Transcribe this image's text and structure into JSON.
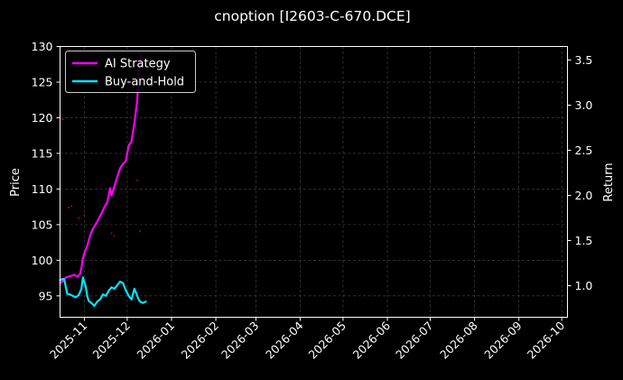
{
  "chart_data": {
    "type": "line",
    "title": "cnoption [I2603-C-670.DCE]",
    "xlabel": "",
    "ylabel": "Price",
    "y2label": "Return",
    "grid": true,
    "legend_position": "top-left",
    "background": "#000000",
    "ylim": [
      92,
      130
    ],
    "yticks": [
      95,
      100,
      105,
      110,
      115,
      120,
      125,
      130
    ],
    "y2lim": [
      0.65,
      3.65
    ],
    "y2ticks": [
      1.0,
      1.5,
      2.0,
      2.5,
      3.0,
      3.5
    ],
    "y2tick_labels": [
      "1.0",
      "1.5",
      "2.0",
      "2.5",
      "3.0",
      "3.5"
    ],
    "xlim": [
      "2025-10-15",
      "2026-10-05"
    ],
    "xticks": [
      "2025-11-01",
      "2025-12-01",
      "2026-01-01",
      "2026-02-01",
      "2026-03-01",
      "2026-04-01",
      "2026-05-01",
      "2026-06-01",
      "2026-07-01",
      "2026-08-01",
      "2026-09-01",
      "2026-10-01"
    ],
    "xtick_labels": [
      "2025-11",
      "2025-12",
      "2026-01",
      "2026-02",
      "2026-03",
      "2026-04",
      "2026-05",
      "2026-06",
      "2026-07",
      "2026-08",
      "2026-09",
      "2026-10"
    ],
    "series": [
      {
        "name": "AI Strategy",
        "axis": "right",
        "color": "#ff00ff",
        "x": [
          "2025-10-15",
          "2025-10-17",
          "2025-10-19",
          "2025-10-21",
          "2025-10-23",
          "2025-10-25",
          "2025-10-27",
          "2025-10-29",
          "2025-10-30",
          "2025-10-31",
          "2025-11-01",
          "2025-11-02",
          "2025-11-03",
          "2025-11-05",
          "2025-11-07",
          "2025-11-09",
          "2025-11-11",
          "2025-11-13",
          "2025-11-15",
          "2025-11-17",
          "2025-11-19",
          "2025-11-20",
          "2025-11-22",
          "2025-11-24",
          "2025-11-26",
          "2025-11-28",
          "2025-11-30",
          "2025-12-02",
          "2025-12-04",
          "2025-12-06",
          "2025-12-08",
          "2025-12-09",
          "2025-12-10",
          "2025-12-11"
        ],
        "values": [
          1.03,
          1.05,
          1.09,
          1.1,
          1.11,
          1.12,
          1.1,
          1.13,
          1.2,
          1.3,
          1.36,
          1.4,
          1.44,
          1.55,
          1.63,
          1.68,
          1.74,
          1.8,
          1.87,
          1.92,
          2.08,
          2.0,
          2.1,
          2.2,
          2.3,
          2.35,
          2.38,
          2.55,
          2.6,
          2.8,
          3.05,
          3.35,
          3.48,
          3.55
        ]
      },
      {
        "name": "Buy-and-Hold",
        "axis": "left",
        "color": "#00e5ff",
        "x": [
          "2025-10-15",
          "2025-10-17",
          "2025-10-18",
          "2025-10-20",
          "2025-10-22",
          "2025-10-24",
          "2025-10-26",
          "2025-10-28",
          "2025-10-30",
          "2025-10-31",
          "2025-11-02",
          "2025-11-03",
          "2025-11-04",
          "2025-11-06",
          "2025-11-08",
          "2025-11-10",
          "2025-11-12",
          "2025-11-14",
          "2025-11-16",
          "2025-11-18",
          "2025-11-20",
          "2025-11-22",
          "2025-11-24",
          "2025-11-26",
          "2025-11-28",
          "2025-11-30",
          "2025-12-02",
          "2025-12-04",
          "2025-12-06",
          "2025-12-07",
          "2025-12-09",
          "2025-12-10",
          "2025-12-12",
          "2025-12-14"
        ],
        "values": [
          97.2,
          97.4,
          97.3,
          95.3,
          95.2,
          95.0,
          94.8,
          95.1,
          96.0,
          97.6,
          96.3,
          95.0,
          94.3,
          94.0,
          93.6,
          94.2,
          94.5,
          95.2,
          95.0,
          95.7,
          96.2,
          96.0,
          96.5,
          97.0,
          96.8,
          95.8,
          95.0,
          94.5,
          96.0,
          95.5,
          94.5,
          94.2,
          94.0,
          94.2
        ]
      }
    ],
    "scatter_points": {
      "color": "#a00040",
      "x": [
        "2025-10-17",
        "2025-10-21",
        "2025-10-23",
        "2025-10-28",
        "2025-11-01",
        "2025-11-09",
        "2025-11-20",
        "2025-11-22",
        "2025-12-08",
        "2025-12-10"
      ],
      "y": [
        119.8,
        107.4,
        107.6,
        105.9,
        106.3,
        105.2,
        103.8,
        103.4,
        111.2,
        104.1
      ]
    }
  }
}
